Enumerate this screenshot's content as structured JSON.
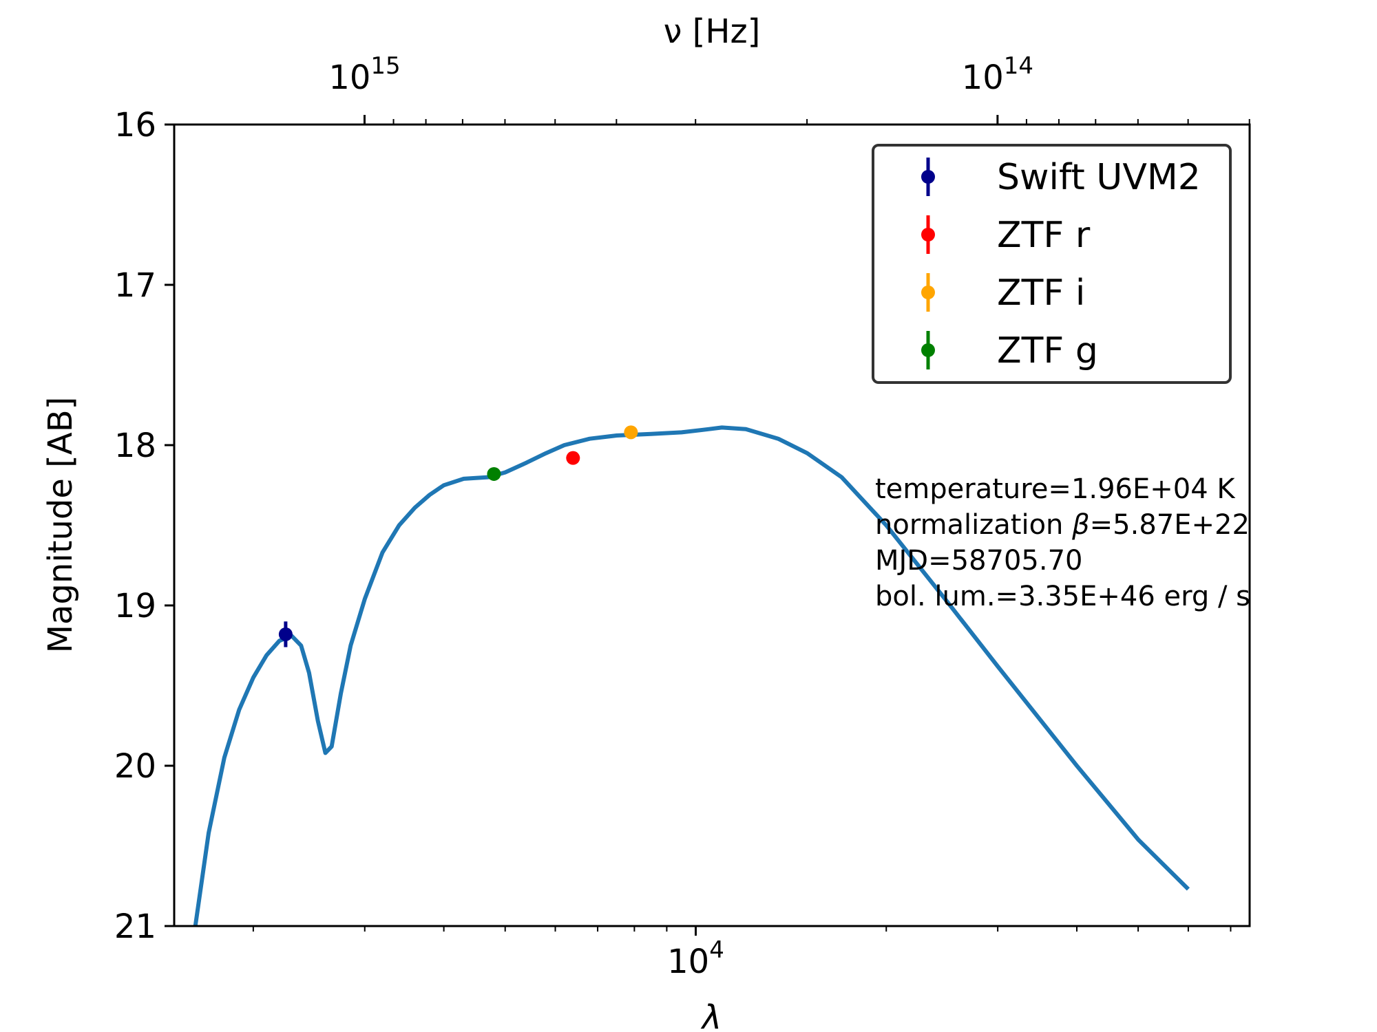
{
  "chart_data": {
    "type": "scatter",
    "xlabel": "λ",
    "x2label": "ν [Hz]",
    "ylabel": "Magnitude [AB]",
    "xscale": "log",
    "x2scale": "log",
    "xlim": [
      1500,
      75000
    ],
    "ylim": [
      21,
      16
    ],
    "y_inverted": true,
    "x_major_ticks": [
      {
        "value": 10000,
        "base": "10",
        "exp": "4"
      }
    ],
    "x2_major_ticks": [
      {
        "value": 1000000000000000.0,
        "base": "10",
        "exp": "15"
      },
      {
        "value": 100000000000000.0,
        "base": "10",
        "exp": "14"
      }
    ],
    "y_ticks": [
      16,
      17,
      18,
      19,
      20,
      21
    ],
    "grid": false,
    "legend_position": "top-right",
    "series": [
      {
        "name": "Swift UVM2",
        "color": "#00008b",
        "marker": "errorbar",
        "points": [
          {
            "x": 2250,
            "y": 19.18,
            "yerr": 0.08
          }
        ]
      },
      {
        "name": "ZTF r",
        "color": "#ff0000",
        "marker": "errorbar",
        "points": [
          {
            "x": 6400,
            "y": 18.08,
            "yerr": 0.03
          }
        ]
      },
      {
        "name": "ZTF i",
        "color": "#ffa500",
        "marker": "errorbar",
        "points": [
          {
            "x": 7900,
            "y": 17.92,
            "yerr": 0.03
          }
        ]
      },
      {
        "name": "ZTF g",
        "color": "#008000",
        "marker": "errorbar",
        "points": [
          {
            "x": 4800,
            "y": 18.18,
            "yerr": 0.03
          }
        ]
      }
    ],
    "model_curve": {
      "color": "#1f77b4",
      "points": [
        [
          1620,
          21.0
        ],
        [
          1700,
          20.42
        ],
        [
          1800,
          19.95
        ],
        [
          1900,
          19.65
        ],
        [
          2000,
          19.45
        ],
        [
          2100,
          19.31
        ],
        [
          2200,
          19.22
        ],
        [
          2300,
          19.19
        ],
        [
          2380,
          19.25
        ],
        [
          2450,
          19.42
        ],
        [
          2530,
          19.72
        ],
        [
          2600,
          19.92
        ],
        [
          2660,
          19.88
        ],
        [
          2750,
          19.55
        ],
        [
          2850,
          19.25
        ],
        [
          3000,
          18.96
        ],
        [
          3200,
          18.67
        ],
        [
          3400,
          18.5
        ],
        [
          3600,
          18.39
        ],
        [
          3800,
          18.31
        ],
        [
          4000,
          18.25
        ],
        [
          4300,
          18.21
        ],
        [
          4700,
          18.2
        ],
        [
          5000,
          18.17
        ],
        [
          5400,
          18.11
        ],
        [
          5800,
          18.05
        ],
        [
          6200,
          18.0
        ],
        [
          6800,
          17.96
        ],
        [
          7500,
          17.94
        ],
        [
          8500,
          17.93
        ],
        [
          9500,
          17.92
        ],
        [
          10500,
          17.9
        ],
        [
          11000,
          17.89
        ],
        [
          12000,
          17.9
        ],
        [
          13500,
          17.96
        ],
        [
          15000,
          18.05
        ],
        [
          17000,
          18.2
        ],
        [
          20000,
          18.5
        ],
        [
          25000,
          18.98
        ],
        [
          30000,
          19.38
        ],
        [
          40000,
          20.0
        ],
        [
          50000,
          20.46
        ],
        [
          60000,
          20.77
        ]
      ]
    },
    "annotations": [
      "temperature=1.96E+04 K",
      "normalization β=5.87E+22",
      "MJD=58705.70",
      "bol. lum.=3.35E+46 erg / s"
    ]
  }
}
